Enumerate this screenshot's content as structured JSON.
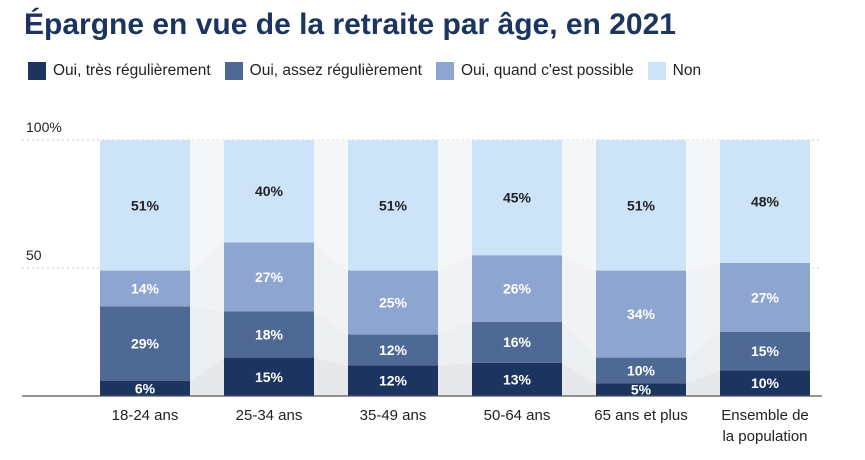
{
  "chart_data": {
    "type": "bar",
    "stacked": true,
    "title": "Épargne en vue de la retraite par âge, en 2021",
    "categories": [
      "18-24 ans",
      "25-34 ans",
      "35-49 ans",
      "50-64 ans",
      "65 ans et plus",
      "Ensemble de la population"
    ],
    "category_lines": [
      [
        "18-24 ans"
      ],
      [
        "25-34 ans"
      ],
      [
        "35-49 ans"
      ],
      [
        "50-64 ans"
      ],
      [
        "65 ans et plus"
      ],
      [
        "Ensemble de",
        "la population"
      ]
    ],
    "series": [
      {
        "name": "Oui, très régulièrement",
        "color": "#1b3560",
        "label_color": "#ffffff",
        "values": [
          6,
          15,
          12,
          13,
          5,
          10
        ]
      },
      {
        "name": "Oui, assez régulièrement",
        "color": "#4e6a94",
        "label_color": "#ffffff",
        "values": [
          29,
          18,
          12,
          16,
          10,
          15
        ]
      },
      {
        "name": "Oui, quand c'est possible",
        "color": "#8ea5d2",
        "label_color": "#ffffff",
        "values": [
          14,
          27,
          25,
          26,
          34,
          27
        ]
      },
      {
        "name": "Non",
        "color": "#cde3f8",
        "label_color": "#222222",
        "values": [
          51,
          40,
          51,
          45,
          51,
          48
        ]
      }
    ],
    "data_labels": [
      [
        "6%",
        "15%",
        "12%",
        "13%",
        "5%",
        "10%"
      ],
      [
        "29%",
        "18%",
        "12%",
        "16%",
        "10%",
        "15%"
      ],
      [
        "14%",
        "27%",
        "25%",
        "26%",
        "34%",
        "27%"
      ],
      [
        "51%",
        "40%",
        "51%",
        "45%",
        "51%",
        "48%"
      ]
    ],
    "yticks": [
      {
        "value": 100,
        "label": "100%"
      },
      {
        "value": 50,
        "label": "50"
      }
    ],
    "ylim": [
      0,
      100
    ],
    "legend_position": "top",
    "grid": true
  }
}
